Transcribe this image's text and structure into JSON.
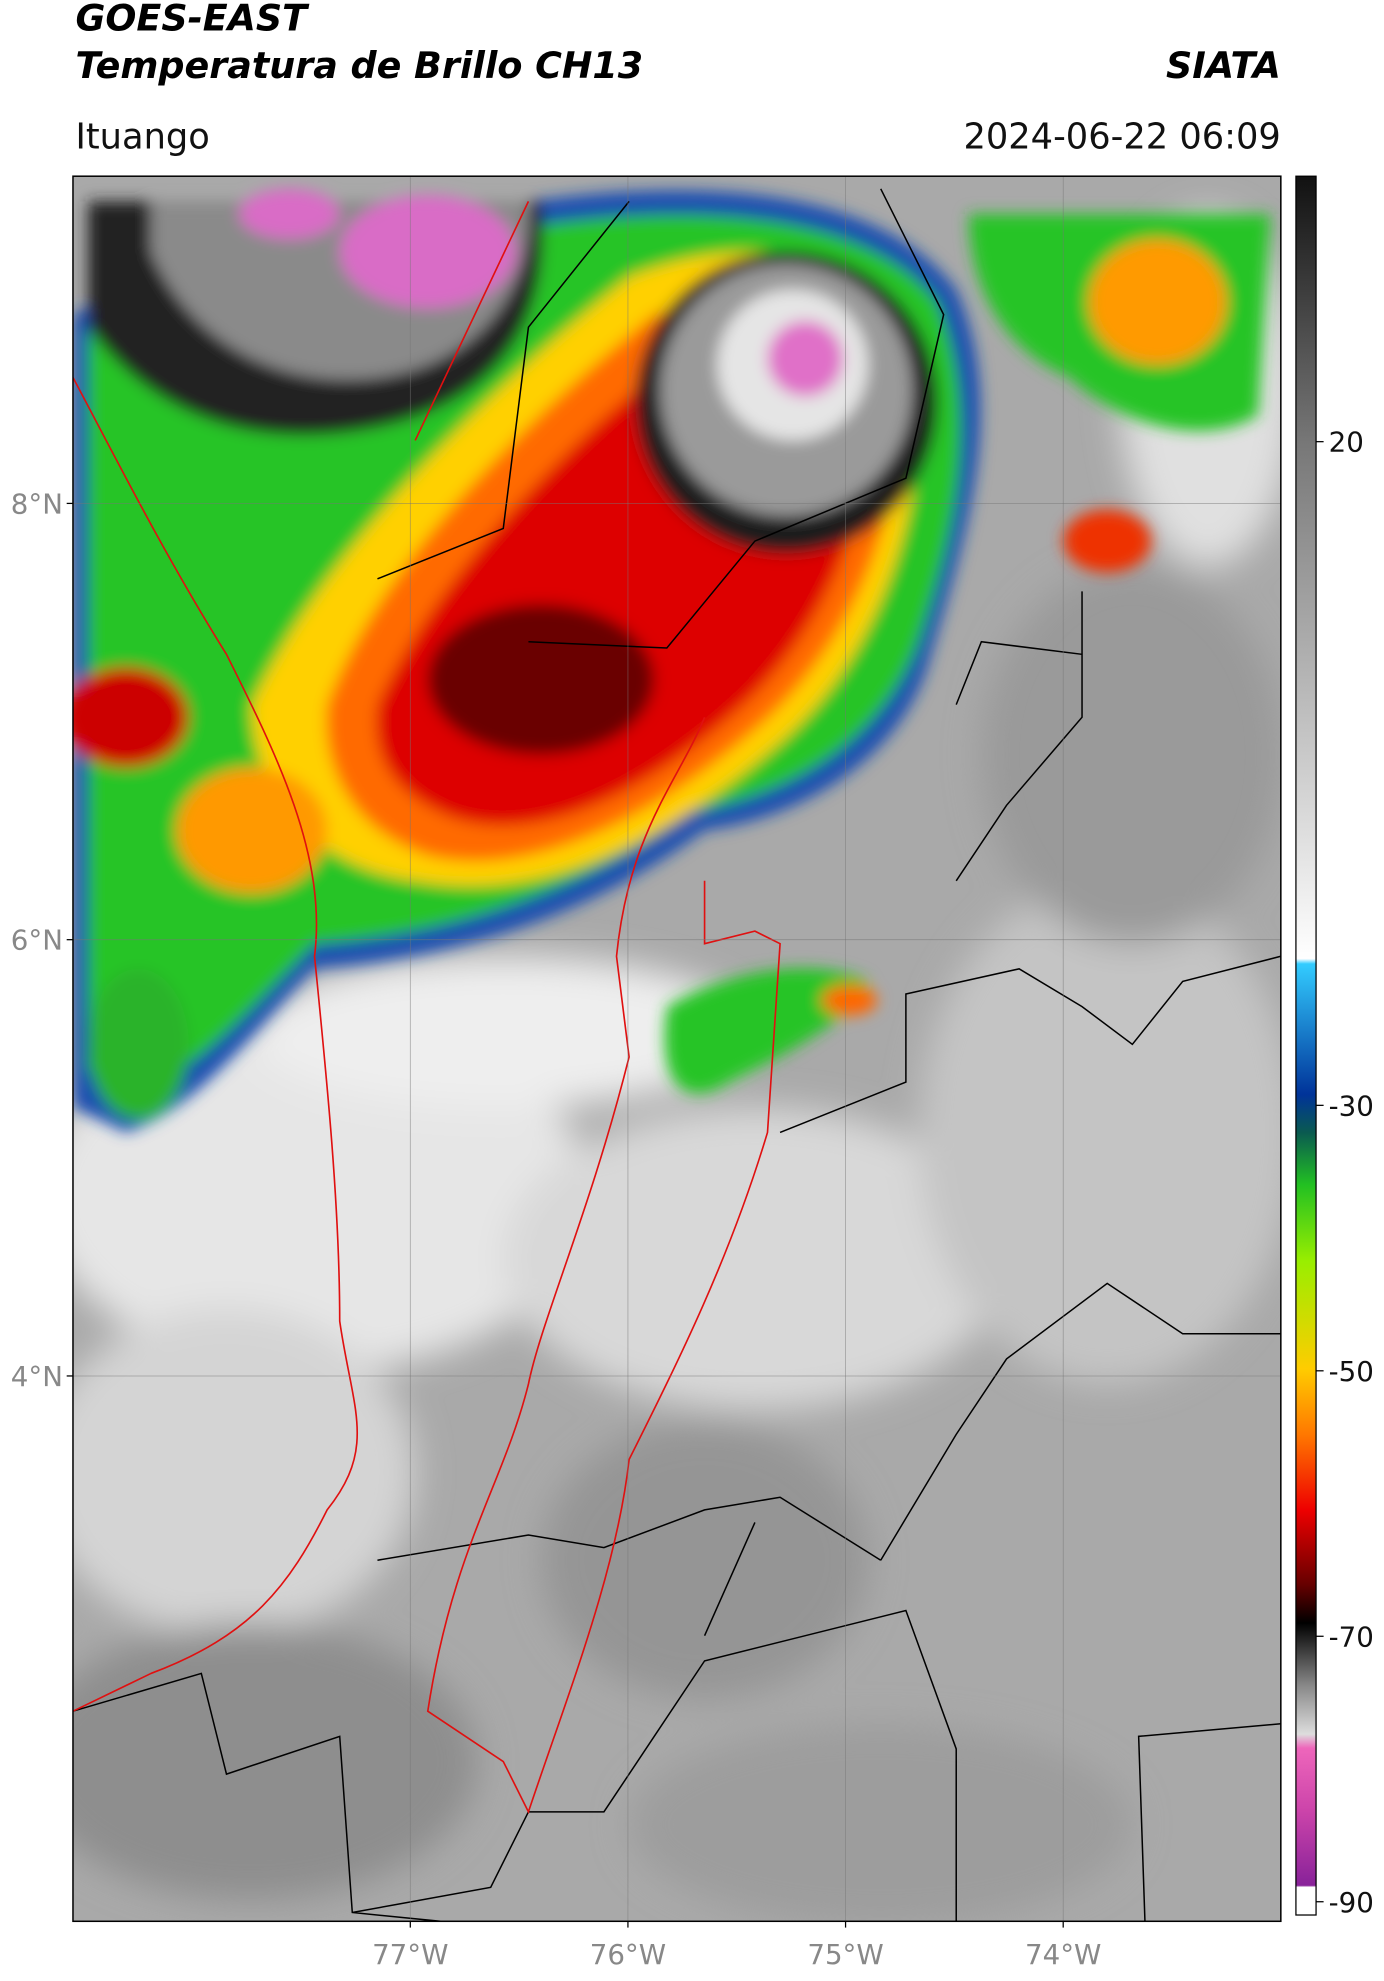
{
  "chart_data": {
    "type": "map",
    "title": "GOES-EAST",
    "subtitle": "Temperatura de Brillo CH13",
    "source": "SIATA",
    "location": "Ituango",
    "datetime": "2024-06-22 06:09",
    "xlim": [
      -78.55,
      -73.0
    ],
    "ylim": [
      1.5,
      9.5
    ],
    "xticks": [
      {
        "value": -77,
        "label": "77°W"
      },
      {
        "value": -76,
        "label": "76°W"
      },
      {
        "value": -75,
        "label": "75°W"
      },
      {
        "value": -74,
        "label": "74°W"
      }
    ],
    "yticks": [
      {
        "value": 8,
        "label": "8°N"
      },
      {
        "value": 6,
        "label": "6°N"
      },
      {
        "value": 4,
        "label": "4°N"
      }
    ],
    "grid": true,
    "colorbar": {
      "lim": [
        -91,
        40
      ],
      "ticks": [
        20,
        -30,
        -50,
        -70,
        -90
      ]
    }
  }
}
